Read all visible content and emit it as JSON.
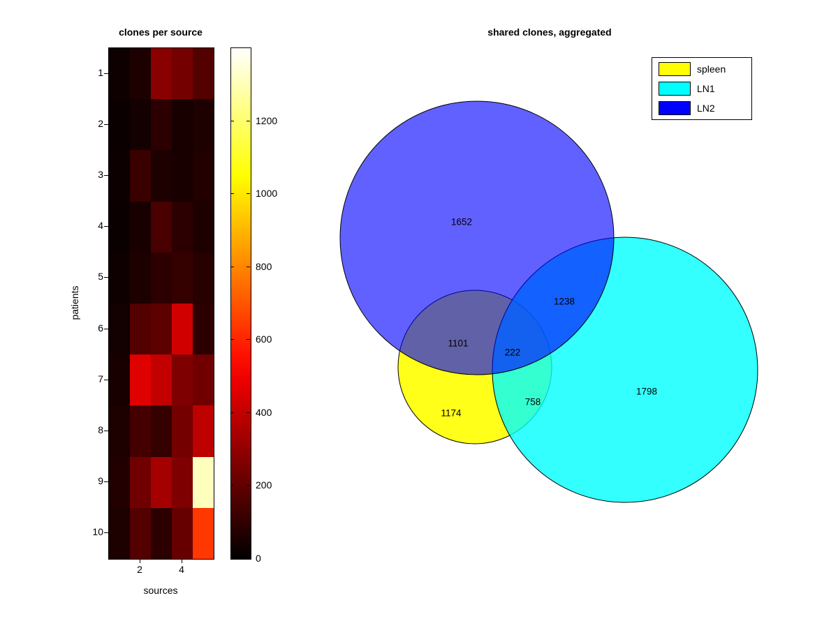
{
  "heatmap": {
    "title": "clones per source",
    "xlabel": "sources",
    "ylabel": "patients",
    "y_ticks": [
      "1",
      "2",
      "3",
      "4",
      "5",
      "6",
      "7",
      "8",
      "9",
      "10"
    ],
    "x_ticks": [
      {
        "label": "2",
        "col": 2
      },
      {
        "label": "4",
        "col": 4
      }
    ],
    "vmax": 1400,
    "colorbar_ticks": [
      0,
      200,
      400,
      600,
      800,
      1000,
      1200
    ],
    "values": [
      [
        30,
        60,
        280,
        240,
        170
      ],
      [
        20,
        40,
        90,
        50,
        60
      ],
      [
        25,
        120,
        60,
        50,
        70
      ],
      [
        20,
        50,
        150,
        90,
        60
      ],
      [
        30,
        60,
        90,
        110,
        80
      ],
      [
        40,
        170,
        190,
        430,
        90
      ],
      [
        50,
        460,
        400,
        260,
        230
      ],
      [
        60,
        140,
        110,
        240,
        390
      ],
      [
        70,
        230,
        340,
        260,
        1310
      ],
      [
        60,
        170,
        90,
        210,
        640
      ]
    ]
  },
  "venn": {
    "title": "shared clones, aggregated",
    "legend": [
      {
        "label": "spleen",
        "color": "#ffff00"
      },
      {
        "label": "LN1",
        "color": "#00ffff"
      },
      {
        "label": "LN2",
        "color": "#0000ff"
      }
    ],
    "regions": {
      "ln2_only": "1652",
      "ln1_only": "1798",
      "spleen_only": "1174",
      "ln1_ln2": "1238",
      "spleen_ln2": "1101",
      "spleen_ln1": "758",
      "all_three": "222"
    }
  },
  "chart_data": [
    {
      "type": "heatmap",
      "title": "clones per source",
      "xlabel": "sources",
      "ylabel": "patients",
      "x_ticks": [
        2,
        4
      ],
      "y_ticks": [
        1,
        2,
        3,
        4,
        5,
        6,
        7,
        8,
        9,
        10
      ],
      "colormap": "hot",
      "colorbar_range": [
        0,
        1400
      ],
      "colorbar_ticks": [
        0,
        200,
        400,
        600,
        800,
        1000,
        1200
      ],
      "values": [
        [
          30,
          60,
          280,
          240,
          170
        ],
        [
          20,
          40,
          90,
          50,
          60
        ],
        [
          25,
          120,
          60,
          50,
          70
        ],
        [
          20,
          50,
          150,
          90,
          60
        ],
        [
          30,
          60,
          90,
          110,
          80
        ],
        [
          40,
          170,
          190,
          430,
          90
        ],
        [
          50,
          460,
          400,
          260,
          230
        ],
        [
          60,
          140,
          110,
          240,
          390
        ],
        [
          70,
          230,
          340,
          260,
          1310
        ],
        [
          60,
          170,
          90,
          210,
          640
        ]
      ]
    },
    {
      "type": "venn",
      "title": "shared clones, aggregated",
      "sets": [
        "spleen",
        "LN1",
        "LN2"
      ],
      "legend_position": "upper right",
      "colors": {
        "spleen": "#ffff00",
        "LN1": "#00ffff",
        "LN2": "#0000ff"
      },
      "counts": {
        "LN2_only": 1652,
        "LN1_only": 1798,
        "spleen_only": 1174,
        "LN1_LN2": 1238,
        "spleen_LN2": 1101,
        "spleen_LN1": 758,
        "spleen_LN1_LN2": 222
      }
    }
  ]
}
